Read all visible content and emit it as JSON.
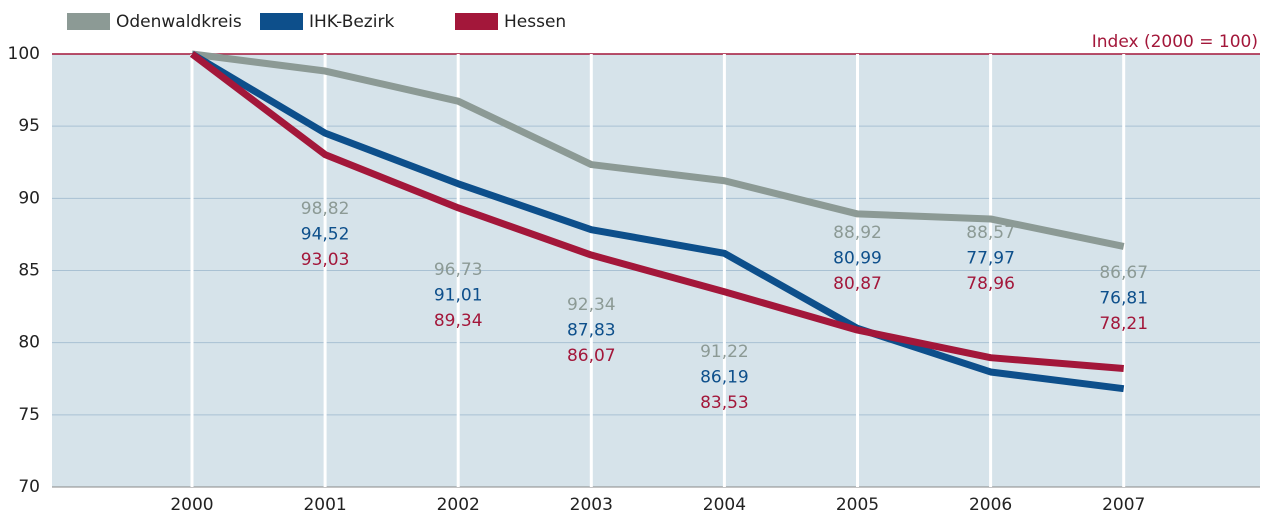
{
  "chart_data": {
    "type": "line",
    "annotation": "Index (2000 = 100)",
    "categories": [
      "2000",
      "2001",
      "2002",
      "2003",
      "2004",
      "2005",
      "2006",
      "2007"
    ],
    "series": [
      {
        "name": "Odenwaldkreis",
        "color": "#8c9a95",
        "values": [
          100,
          98.82,
          96.73,
          92.34,
          91.22,
          88.92,
          88.57,
          86.67
        ],
        "value_labels": [
          null,
          "98,82",
          "96,73",
          "92,34",
          "91,22",
          "88,92",
          "88,57",
          "86,67"
        ]
      },
      {
        "name": "IHK-Bezirk",
        "color": "#0d4f8b",
        "values": [
          100,
          94.52,
          91.01,
          87.83,
          86.19,
          80.99,
          77.97,
          76.81
        ],
        "value_labels": [
          null,
          "94,52",
          "91,01",
          "87,83",
          "86,19",
          "80,99",
          "77,97",
          "76,81"
        ]
      },
      {
        "name": "Hessen",
        "color": "#a3173a",
        "values": [
          100,
          93.03,
          89.34,
          86.07,
          83.53,
          80.87,
          78.96,
          78.21
        ],
        "value_labels": [
          null,
          "93,03",
          "89,34",
          "86,07",
          "83,53",
          "80,87",
          "78,96",
          "78,21"
        ]
      }
    ],
    "ylim": [
      70,
      100
    ],
    "yticks": [
      70,
      75,
      80,
      85,
      90,
      95,
      100
    ],
    "grid": true
  }
}
